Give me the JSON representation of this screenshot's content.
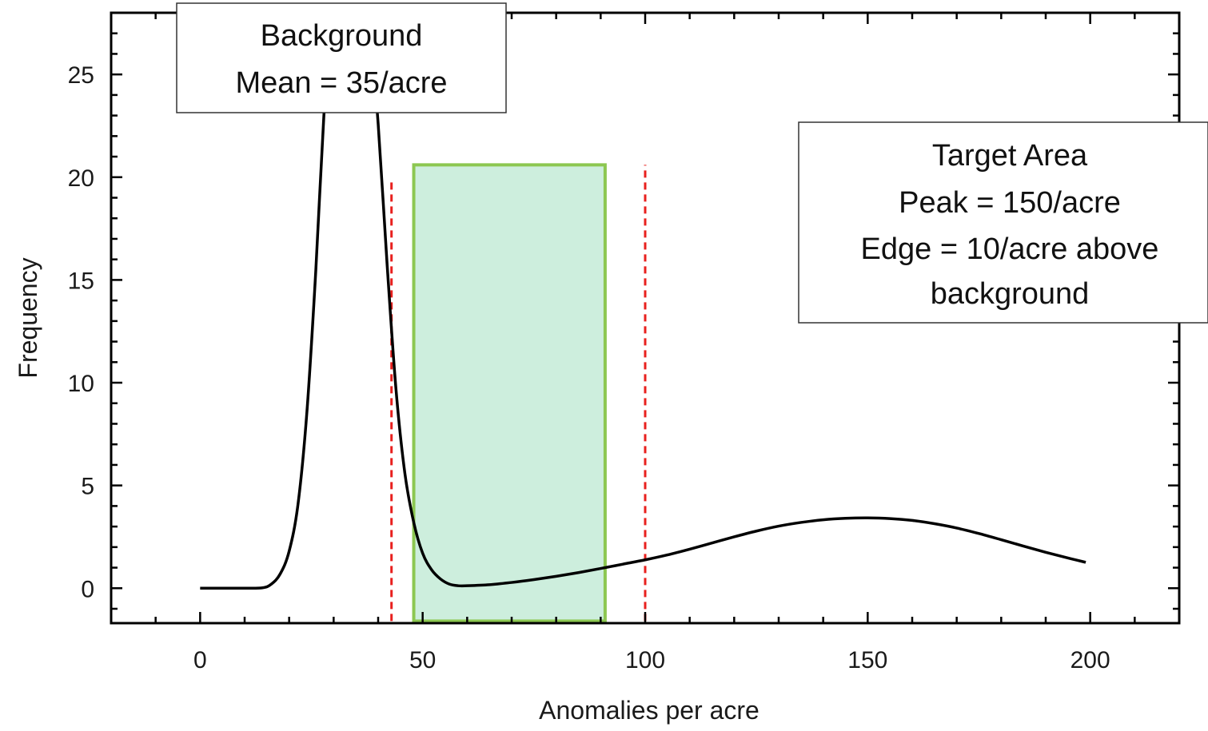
{
  "chart_data": {
    "type": "line",
    "xlabel": "Anomalies per acre",
    "ylabel": "Frequency",
    "xlim": [
      -20,
      220
    ],
    "ylim": [
      -1.7,
      28
    ],
    "x_ticks": [
      0,
      50,
      100,
      150,
      200
    ],
    "y_ticks": [
      0,
      5,
      10,
      15,
      20,
      25
    ],
    "x_minor_step": 10,
    "y_minor_step": 1,
    "grid": false,
    "series": [
      {
        "color": "#000000",
        "x": [
          0,
          5,
          10,
          14,
          16,
          18,
          20,
          22,
          24,
          26,
          28,
          30,
          32,
          34,
          36,
          38,
          40,
          42,
          44,
          46,
          48,
          50,
          52,
          54,
          56,
          58,
          60,
          65,
          70,
          75,
          80,
          85,
          90,
          95,
          100,
          105,
          110,
          115,
          120,
          125,
          130,
          135,
          140,
          145,
          150,
          155,
          160,
          165,
          170,
          175,
          180,
          185,
          190,
          195,
          199
        ],
        "y": [
          0,
          0,
          0,
          0.02,
          0.2,
          0.7,
          1.8,
          4.1,
          8.6,
          15.5,
          23.8,
          29.2,
          30.5,
          30.2,
          29.6,
          27.5,
          22.6,
          15.8,
          9.7,
          5.6,
          3.2,
          1.7,
          0.9,
          0.45,
          0.2,
          0.12,
          0.12,
          0.17,
          0.28,
          0.42,
          0.58,
          0.76,
          0.96,
          1.17,
          1.38,
          1.62,
          1.9,
          2.2,
          2.5,
          2.78,
          3.02,
          3.2,
          3.33,
          3.4,
          3.42,
          3.39,
          3.3,
          3.14,
          2.93,
          2.66,
          2.36,
          2.05,
          1.75,
          1.47,
          1.26
        ]
      }
    ],
    "highlight_band": {
      "x_from": 48,
      "x_to": 91,
      "y_from": -1.6,
      "y_to": 20.6,
      "fill": "#cdeedd",
      "stroke": "#8cc751"
    },
    "reference_lines": [
      {
        "x": 43,
        "y_from": -1.6,
        "y_to": 19.9,
        "color": "#e8201e"
      },
      {
        "x": 100,
        "y_from": -1.6,
        "y_to": 20.6,
        "color": "#e8201e"
      }
    ],
    "annotations": [
      {
        "lines": [
          "Background",
          "Mean = 35/acre"
        ]
      },
      {
        "lines": [
          "Target Area",
          "Peak = 150/acre",
          "Edge = 10/acre above",
          "background"
        ]
      }
    ]
  }
}
